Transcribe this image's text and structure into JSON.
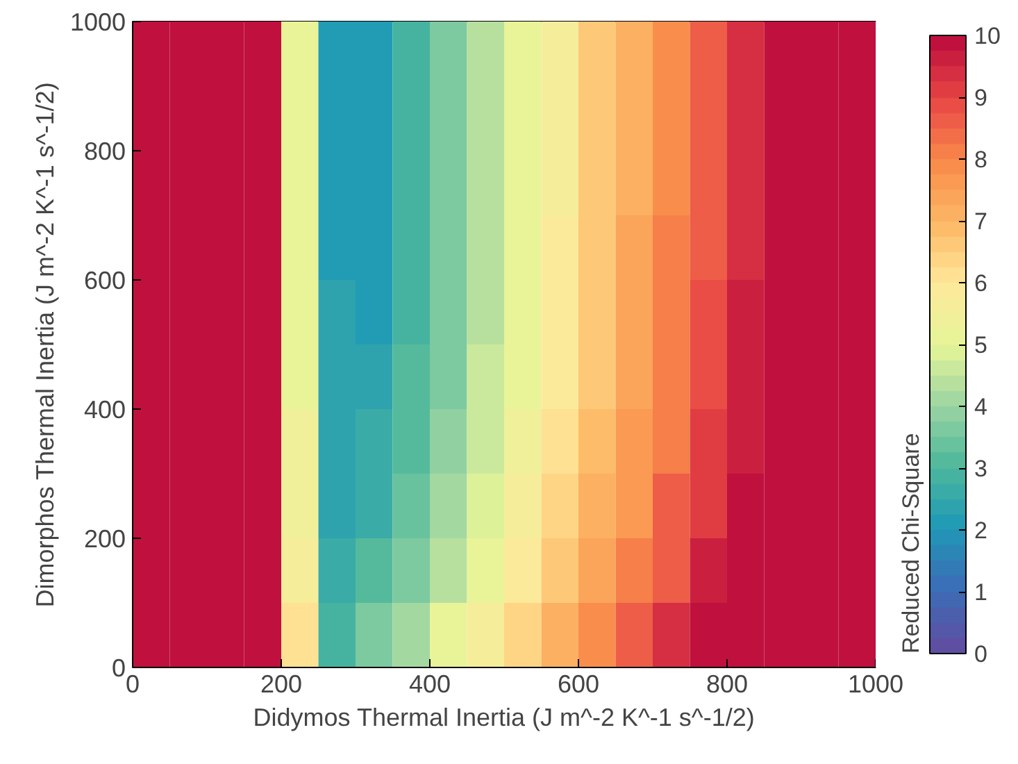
{
  "chart_data": {
    "type": "heatmap",
    "xlabel": "Didymos Thermal Inertia (J m^-2 K^-1 s^-1/2)",
    "ylabel": "Dimorphos Thermal Inertia (J m^-2 K^-1 s^-1/2)",
    "clabel": "Reduced Chi-Square",
    "x": [
      25,
      75,
      125,
      175,
      225,
      275,
      325,
      375,
      425,
      475,
      525,
      575,
      625,
      675,
      725,
      775,
      825,
      875,
      925,
      975
    ],
    "y": [
      950,
      850,
      750,
      650,
      550,
      450,
      350,
      250,
      150,
      50
    ],
    "cells": [
      [
        10,
        10,
        10,
        10,
        5.0,
        2.2,
        2.1,
        2.8,
        3.6,
        4.3,
        5.0,
        5.7,
        6.5,
        7.2,
        7.9,
        8.6,
        9.4,
        10,
        10,
        10
      ],
      [
        10,
        10,
        10,
        10,
        5.0,
        2.2,
        2.1,
        2.8,
        3.6,
        4.3,
        5.0,
        5.7,
        6.5,
        7.2,
        7.9,
        8.6,
        9.4,
        10,
        10,
        10
      ],
      [
        10,
        10,
        10,
        10,
        5.0,
        2.2,
        2.1,
        2.8,
        3.6,
        4.3,
        5.0,
        5.7,
        6.5,
        7.2,
        7.9,
        8.6,
        9.4,
        10,
        10,
        10
      ],
      [
        10,
        10,
        10,
        10,
        5.1,
        2.2,
        2.2,
        2.9,
        3.6,
        4.3,
        5.1,
        5.8,
        6.5,
        7.3,
        8.0,
        8.7,
        9.4,
        10,
        10,
        10
      ],
      [
        10,
        10,
        10,
        10,
        5.1,
        2.3,
        2.2,
        2.9,
        3.7,
        4.4,
        5.1,
        5.8,
        6.6,
        7.3,
        8.0,
        8.8,
        9.5,
        10,
        10,
        10
      ],
      [
        10,
        10,
        10,
        10,
        5.2,
        2.3,
        2.3,
        3.0,
        3.7,
        4.5,
        5.2,
        5.9,
        6.6,
        7.4,
        8.1,
        8.8,
        9.5,
        10,
        10,
        10
      ],
      [
        10,
        10,
        10,
        10,
        5.3,
        2.4,
        2.5,
        3.2,
        3.9,
        4.6,
        5.3,
        6.1,
        6.8,
        7.5,
        8.2,
        9.0,
        9.7,
        10,
        10,
        10
      ],
      [
        10,
        10,
        10,
        10,
        5.4,
        2.4,
        2.7,
        3.4,
        4.1,
        4.8,
        5.6,
        6.3,
        7.0,
        7.7,
        8.5,
        9.2,
        9.9,
        10,
        10,
        10
      ],
      [
        10,
        10,
        10,
        10,
        5.6,
        2.6,
        3.0,
        3.7,
        4.4,
        5.1,
        5.8,
        6.6,
        7.3,
        8.0,
        8.7,
        9.5,
        10,
        10,
        10,
        10
      ],
      [
        10,
        10,
        10,
        10,
        6.0,
        2.8,
        3.5,
        4.2,
        5.0,
        5.7,
        6.4,
        7.2,
        7.9,
        8.6,
        9.3,
        10,
        10,
        10,
        10,
        10
      ]
    ],
    "xlim": [
      0,
      1000
    ],
    "xticks": [
      0,
      200,
      400,
      600,
      800,
      1000
    ],
    "ylim": [
      0,
      1000
    ],
    "yticks": [
      0,
      200,
      400,
      600,
      800,
      1000
    ],
    "clim": [
      0,
      10
    ],
    "cticks": [
      0,
      1,
      2,
      3,
      4,
      5,
      6,
      7,
      8,
      9,
      10
    ]
  }
}
